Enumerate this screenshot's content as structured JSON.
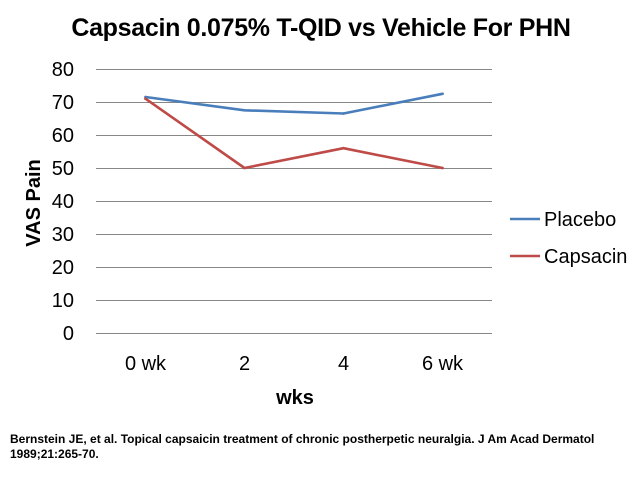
{
  "chart_data": {
    "type": "line",
    "title": "Capsacin 0.075% T-QID vs Vehicle For PHN",
    "xlabel": "wks",
    "ylabel": "VAS Pain",
    "categories": [
      "0 wk",
      "2",
      "4",
      "6 wk"
    ],
    "ylim": [
      0,
      80
    ],
    "yticks": [
      0,
      10,
      20,
      30,
      40,
      50,
      60,
      70,
      80
    ],
    "grid": true,
    "legend_position": "right",
    "series": [
      {
        "name": "Placebo",
        "color": "#4a7ebb",
        "values": [
          71.5,
          67.5,
          66.5,
          72.5
        ]
      },
      {
        "name": "Capsacin",
        "color": "#be4b48",
        "values": [
          71,
          50,
          56,
          50
        ]
      }
    ]
  },
  "citation": "Bernstein JE, et al. Topical capsaicin treatment of chronic postherpetic neuralgia. J Am Acad Dermatol 1989;21:265-70."
}
